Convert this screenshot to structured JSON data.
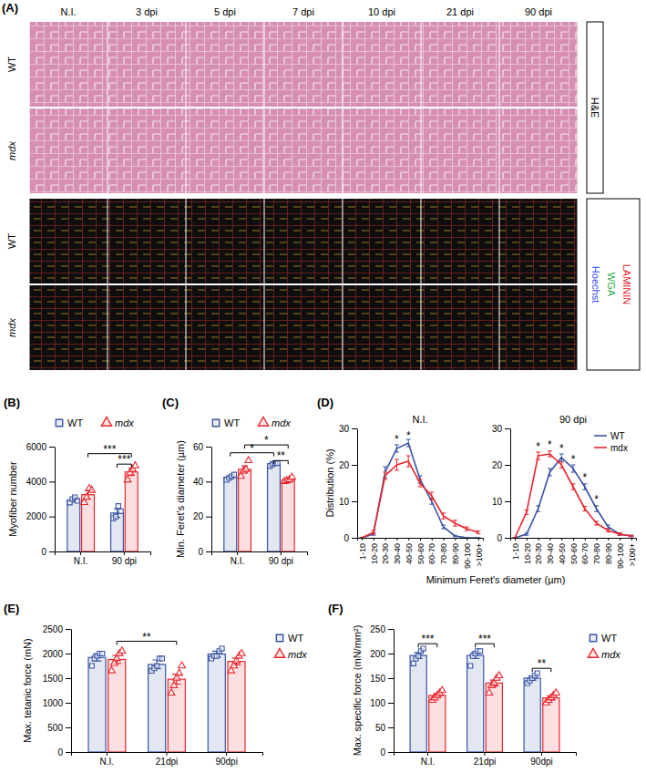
{
  "image_panel": {
    "panel_label": "(A)",
    "columns": [
      "N.I.",
      "3 dpi",
      "5 dpi",
      "7 dpi",
      "10 dpi",
      "21 dpi",
      "90 dpi"
    ],
    "rows": [
      "WT",
      "mdx",
      "WT",
      "mdx"
    ],
    "he_label": "H&E",
    "if_stains": [
      {
        "text": "Hoechst",
        "color": "#2f4bff"
      },
      {
        "text": "WGA",
        "color": "#1fa843"
      },
      {
        "text": "LAMININ",
        "color": "#e41a1c"
      }
    ]
  },
  "chart_data": [
    {
      "type": "bar",
      "panel_label": "(B)",
      "ylabel": "Myofiber number",
      "categories": [
        "N.I.",
        "90 dpi"
      ],
      "ylim": [
        0,
        6000
      ],
      "yticks": [
        0,
        2000,
        4000,
        6000
      ],
      "legend": "top",
      "series": [
        {
          "name": "WT",
          "color": "#3853a4",
          "marker": "square",
          "values": [
            2950,
            2200
          ],
          "errors": [
            120,
            250
          ],
          "points": [
            [
              2800,
              3000,
              3100,
              2900
            ],
            [
              1900,
              2000,
              2600,
              2300
            ]
          ]
        },
        {
          "name": "mdx",
          "color": "#e8262d",
          "marker": "triangle",
          "values": [
            3250,
            4550
          ],
          "errors": [
            250,
            200
          ],
          "points": [
            [
              2800,
              3100,
              3600,
              3500
            ],
            [
              4100,
              4500,
              4700,
              4900
            ]
          ]
        }
      ],
      "annotations": [
        {
          "text": "***",
          "from": [
            0,
            1
          ],
          "to": [
            1,
            1
          ],
          "y": 5600
        },
        {
          "text": "***",
          "from": [
            1,
            0
          ],
          "to": [
            1,
            1
          ],
          "y": 5000
        }
      ]
    },
    {
      "type": "bar",
      "panel_label": "(C)",
      "ylabel": "Min. Feret's diameter (µm)",
      "categories": [
        "N.I.",
        "90 dpi"
      ],
      "ylim": [
        0,
        60
      ],
      "yticks": [
        0,
        20,
        40,
        60
      ],
      "legend": "top",
      "series": [
        {
          "name": "WT",
          "color": "#3853a4",
          "marker": "square",
          "values": [
            42.5,
            50
          ],
          "errors": [
            1,
            0.7
          ],
          "points": [
            [
              41,
              42,
              43,
              44
            ],
            [
              49,
              50,
              50.5,
              50.5
            ]
          ]
        },
        {
          "name": "mdx",
          "color": "#e8262d",
          "marker": "triangle",
          "values": [
            47,
            41
          ],
          "errors": [
            2,
            1
          ],
          "points": [
            [
              43,
              46,
              47,
              52
            ],
            [
              40,
              40.5,
              41,
              42.5
            ]
          ]
        }
      ],
      "annotations": [
        {
          "text": "*",
          "from": [
            0,
            1
          ],
          "to": [
            1,
            1
          ],
          "y": 61
        },
        {
          "text": "*",
          "from": [
            0,
            0
          ],
          "to": [
            1,
            0
          ],
          "y": 56.5
        },
        {
          "text": "**",
          "from": [
            1,
            0
          ],
          "to": [
            1,
            1
          ],
          "y": 52
        }
      ]
    },
    {
      "type": "line",
      "panel_label": "(D)",
      "title": "N.I.",
      "ylabel": "Distribution (%)",
      "xlabel": "Minimum Feret's diameter (µm)",
      "categories": [
        "1-10",
        "10-20",
        "20-30",
        "30-40",
        "40-50",
        "50-60",
        "60-70",
        "70-80",
        "80-90",
        "90-100",
        ">100+"
      ],
      "ylim": [
        0,
        30
      ],
      "yticks": [
        0,
        10,
        20,
        30
      ],
      "series": [
        {
          "color": "#3853a4",
          "values": [
            0,
            1,
            18,
            24.5,
            26,
            16,
            10,
            3,
            0.5,
            0,
            0
          ],
          "errors": [
            0,
            0.3,
            1.5,
            1,
            1,
            1,
            0.8,
            0.5,
            0.2,
            0,
            0
          ]
        },
        {
          "color": "#e8262d",
          "values": [
            0,
            1.5,
            17,
            20,
            21,
            15,
            11.5,
            6,
            4,
            2.5,
            1.5
          ],
          "errors": [
            0,
            0.5,
            1,
            1.5,
            1.5,
            1,
            1,
            0.8,
            0.8,
            0.5,
            0.4
          ]
        }
      ],
      "annotations": [
        {
          "text": "*",
          "category": 3,
          "y": 27
        },
        {
          "text": "*",
          "category": 4,
          "y": 28
        }
      ]
    },
    {
      "type": "line",
      "title": "90 dpi",
      "legend": "top-right",
      "categories": [
        "1-10",
        "10-20",
        "20-30",
        "30-40",
        "40-50",
        "50-60",
        "60-70",
        "70-80",
        "80-90",
        "90-100",
        ">100+"
      ],
      "ylim": [
        0,
        30
      ],
      "yticks": [
        0,
        10,
        20,
        30
      ],
      "series": [
        {
          "name": "WT",
          "color": "#3853a4",
          "values": [
            0,
            1,
            8,
            18,
            22,
            19,
            14,
            8,
            3,
            1,
            0.5
          ],
          "errors": [
            0,
            0.3,
            0.8,
            1,
            1,
            1,
            0.8,
            0.8,
            0.5,
            0.3,
            0.2
          ]
        },
        {
          "name": "mdx",
          "color": "#e8262d",
          "values": [
            0,
            7,
            22.5,
            23,
            20,
            14,
            8,
            4,
            2,
            1,
            0.5
          ],
          "errors": [
            0,
            0.6,
            1,
            0.8,
            0.8,
            0.8,
            0.6,
            0.5,
            0.4,
            0.3,
            0.2
          ]
        }
      ],
      "annotations": [
        {
          "text": "*",
          "category": 2,
          "y": 25
        },
        {
          "text": "*",
          "category": 3,
          "y": 25.5
        },
        {
          "text": "*",
          "category": 4,
          "y": 24.5
        },
        {
          "text": "*",
          "category": 5,
          "y": 21.5
        },
        {
          "text": "*",
          "category": 6,
          "y": 16.5
        },
        {
          "text": "*",
          "category": 7,
          "y": 10.5
        }
      ]
    },
    {
      "type": "bar",
      "panel_label": "(E)",
      "ylabel": "Max. tetanic force (mN)",
      "categories": [
        "N.I.",
        "21dpi",
        "90dpi"
      ],
      "ylim": [
        0,
        2500
      ],
      "yticks": [
        0,
        500,
        1000,
        1500,
        2000,
        2500
      ],
      "legend": "right",
      "series": [
        {
          "name": "WT",
          "color": "#3853a4",
          "marker": "square",
          "values": [
            1920,
            1780,
            1990
          ],
          "errors": [
            70,
            90,
            60
          ],
          "points": [
            [
              1750,
              1900,
              1950,
              2000,
              2000
            ],
            [
              1650,
              1700,
              1750,
              1900,
              1900
            ],
            [
              1900,
              1950,
              1950,
              2050,
              2100
            ]
          ]
        },
        {
          "name": "mdx",
          "color": "#e8262d",
          "marker": "triangle",
          "values": [
            1880,
            1480,
            1840
          ],
          "errors": [
            80,
            100,
            70
          ],
          "points": [
            [
              1650,
              1800,
              1900,
              2000,
              2050
            ],
            [
              1200,
              1350,
              1500,
              1600,
              1750
            ],
            [
              1650,
              1750,
              1850,
              1950,
              2000
            ]
          ]
        }
      ],
      "annotations": [
        {
          "text": "**",
          "from": [
            0,
            1
          ],
          "to": [
            1,
            1
          ],
          "y": 2250
        }
      ]
    },
    {
      "type": "bar",
      "panel_label": "(F)",
      "ylabel": "Max. specific force (mN/mm²)",
      "categories": [
        "N.I.",
        "21dpi",
        "90dpi"
      ],
      "ylim": [
        0,
        250
      ],
      "yticks": [
        0,
        50,
        100,
        150,
        200,
        250
      ],
      "legend": "right",
      "series": [
        {
          "name": "WT",
          "color": "#3853a4",
          "marker": "square",
          "values": [
            196,
            196,
            150
          ],
          "errors": [
            6,
            6,
            4
          ],
          "points": [
            [
              180,
              190,
              195,
              205,
              210
            ],
            [
              175,
              195,
              200,
              205,
              205
            ],
            [
              140,
              145,
              150,
              155,
              160
            ]
          ]
        },
        {
          "name": "mdx",
          "color": "#e8262d",
          "marker": "triangle",
          "values": [
            115,
            140,
            110
          ],
          "errors": [
            4,
            6,
            4
          ],
          "points": [
            [
              105,
              110,
              115,
              120,
              125
            ],
            [
              120,
              135,
              140,
              150,
              155
            ],
            [
              100,
              105,
              110,
              115,
              120
            ]
          ]
        }
      ],
      "annotations": [
        {
          "text": "***",
          "from": [
            0,
            0
          ],
          "to": [
            0,
            1
          ],
          "y": 220
        },
        {
          "text": "***",
          "from": [
            1,
            0
          ],
          "to": [
            1,
            1
          ],
          "y": 220
        },
        {
          "text": "**",
          "from": [
            2,
            0
          ],
          "to": [
            2,
            1
          ],
          "y": 170
        }
      ]
    }
  ]
}
